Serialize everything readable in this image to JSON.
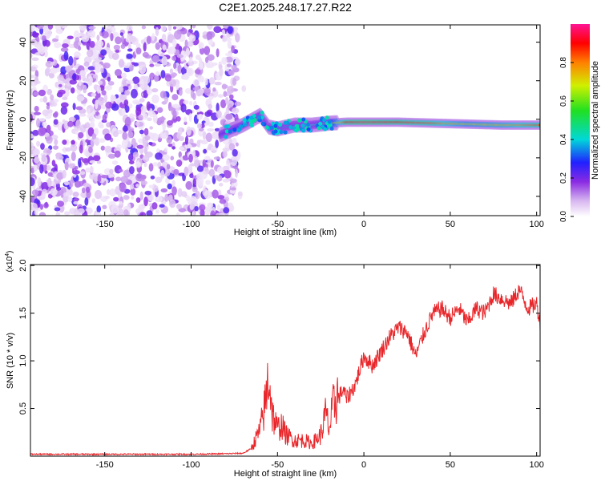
{
  "figure_title": "C2E1.2025.248.17.27.R22",
  "chart_data": [
    {
      "type": "heatmap",
      "title": "C2E1.2025.248.17.27.R22",
      "xlabel": "Height of straight line (km)",
      "ylabel": "Frequency (Hz)",
      "xlim": [
        -193,
        102
      ],
      "ylim": [
        -50,
        49
      ],
      "xticks": [
        -150,
        -100,
        -50,
        0,
        50,
        100
      ],
      "xtick_labels": [
        "-150",
        "-100",
        "-50",
        "0",
        "50",
        "100"
      ],
      "yticks": [
        -40,
        -20,
        0,
        20,
        40
      ],
      "ytick_labels": [
        "-40",
        "-20",
        "0",
        "20",
        "40"
      ],
      "colorbar": {
        "label": "Normalized spectral amplitude",
        "range": [
          0,
          1
        ],
        "ticks": [
          0.0,
          0.2,
          0.4,
          0.6,
          0.8
        ],
        "tick_labels": [
          "0.0",
          "0.2",
          "0.4",
          "0.6",
          "0.8"
        ],
        "colormap": "rainbow (white-violet-blue-cyan-green-yellow-red-magenta)"
      },
      "noise_region": {
        "x_range": [
          -193,
          -73
        ],
        "description": "broadband noise across all frequencies"
      },
      "signal_ridge": {
        "x": [
          -83,
          -70,
          -60,
          -55,
          -50,
          -40,
          -30,
          -20,
          -10,
          0,
          20,
          40,
          60,
          80,
          100
        ],
        "frequency": [
          -8,
          -3,
          2,
          -4,
          -5,
          -3,
          -3,
          -2,
          -1.5,
          -1.5,
          -1.5,
          -2,
          -2.5,
          -3,
          -3
        ],
        "peak_amplitude": [
          0.25,
          0.3,
          0.35,
          0.35,
          0.35,
          0.35,
          0.4,
          0.5,
          0.9,
          0.95,
          0.9,
          0.85,
          0.7,
          0.75,
          0.85
        ]
      }
    },
    {
      "type": "line",
      "series_name": "SNR",
      "xlabel": "Height of straight line (km)",
      "ylabel": "SNR (10 * v/v)",
      "y_multiplier": "(x10^4)",
      "xlim": [
        -193,
        102
      ],
      "ylim": [
        0,
        20100
      ],
      "xticks": [
        -150,
        -100,
        -50,
        0,
        50,
        100
      ],
      "xtick_labels": [
        "-150",
        "-100",
        "-50",
        "0",
        "50",
        "100"
      ],
      "yticks": [
        5000,
        10000,
        15000,
        20000
      ],
      "ytick_labels": [
        "0.5",
        "1.0",
        "1.5",
        "2.0"
      ],
      "color": "#e8262a",
      "x": [
        -193,
        -150,
        -100,
        -80,
        -70,
        -65,
        -60,
        -57,
        -55,
        -53,
        -50,
        -48,
        -45,
        -40,
        -35,
        -30,
        -25,
        -22,
        -20,
        -18,
        -15,
        -12,
        -10,
        -5,
        0,
        5,
        10,
        15,
        20,
        25,
        30,
        35,
        40,
        45,
        50,
        55,
        60,
        65,
        70,
        75,
        80,
        85,
        90,
        95,
        100,
        102
      ],
      "y": [
        200,
        200,
        200,
        250,
        300,
        800,
        2500,
        5000,
        8000,
        4000,
        2500,
        3000,
        2000,
        1500,
        1500,
        1200,
        2000,
        4000,
        2500,
        4500,
        6000,
        7000,
        6000,
        7500,
        10500,
        9500,
        11000,
        12500,
        13500,
        13000,
        10500,
        13000,
        15000,
        15500,
        14500,
        15500,
        14000,
        15500,
        15000,
        17000,
        16500,
        16000,
        17500,
        15500,
        16000,
        14000
      ]
    }
  ]
}
